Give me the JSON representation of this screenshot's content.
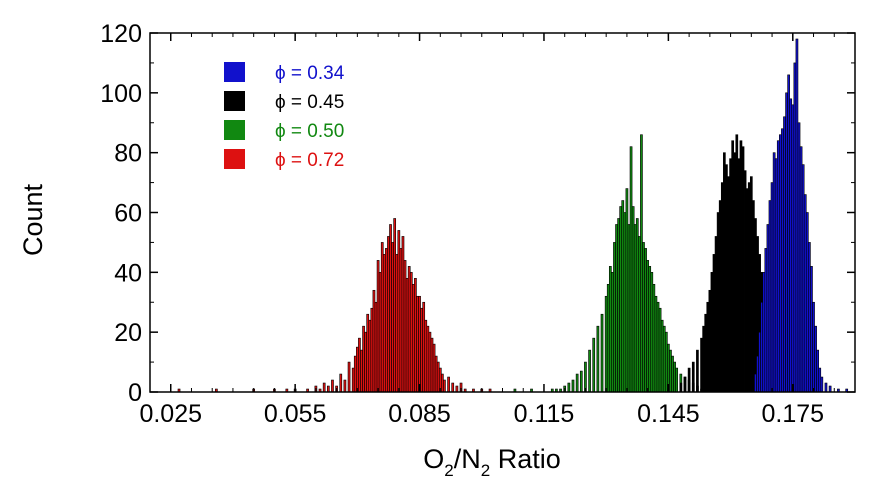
{
  "chart_data": {
    "type": "bar",
    "title": "",
    "xlabel": {
      "parts": [
        {
          "text": "O",
          "sub": false
        },
        {
          "text": "2",
          "sub": true
        },
        {
          "text": "/N",
          "sub": false
        },
        {
          "text": "2",
          "sub": true
        },
        {
          "text": " Ratio",
          "sub": false
        }
      ]
    },
    "ylabel": "Count",
    "xlim": [
      0.02,
      0.19
    ],
    "ylim": [
      0,
      120
    ],
    "x_ticks": [
      "0.025",
      "0.055",
      "0.085",
      "0.115",
      "0.145",
      "0.175"
    ],
    "y_ticks": [
      "0",
      "20",
      "40",
      "60",
      "80",
      "100",
      "120"
    ],
    "grid": false,
    "legend_position": "top-left",
    "series": [
      {
        "name": "ϕ = 0.72",
        "color": "#dd1111",
        "points": [
          [
            0.027,
            1
          ],
          [
            0.036,
            1
          ],
          [
            0.045,
            1
          ],
          [
            0.05,
            1
          ],
          [
            0.053,
            1
          ],
          [
            0.055,
            1
          ],
          [
            0.058,
            1
          ],
          [
            0.06,
            2
          ],
          [
            0.061,
            1
          ],
          [
            0.062,
            3
          ],
          [
            0.063,
            2
          ],
          [
            0.064,
            4
          ],
          [
            0.065,
            2
          ],
          [
            0.066,
            6
          ],
          [
            0.067,
            4
          ],
          [
            0.068,
            10
          ],
          [
            0.069,
            8
          ],
          [
            0.0695,
            12
          ],
          [
            0.07,
            15
          ],
          [
            0.0705,
            18
          ],
          [
            0.071,
            14
          ],
          [
            0.0715,
            22
          ],
          [
            0.072,
            20
          ],
          [
            0.0725,
            26
          ],
          [
            0.073,
            24
          ],
          [
            0.0735,
            28
          ],
          [
            0.074,
            34
          ],
          [
            0.0745,
            30
          ],
          [
            0.075,
            44
          ],
          [
            0.0755,
            40
          ],
          [
            0.076,
            50
          ],
          [
            0.0765,
            46
          ],
          [
            0.077,
            48
          ],
          [
            0.0775,
            52
          ],
          [
            0.078,
            56
          ],
          [
            0.0785,
            50
          ],
          [
            0.079,
            58
          ],
          [
            0.0795,
            46
          ],
          [
            0.08,
            54
          ],
          [
            0.0805,
            48
          ],
          [
            0.081,
            52
          ],
          [
            0.0815,
            44
          ],
          [
            0.082,
            38
          ],
          [
            0.0825,
            42
          ],
          [
            0.083,
            40
          ],
          [
            0.0835,
            36
          ],
          [
            0.084,
            38
          ],
          [
            0.0845,
            32
          ],
          [
            0.085,
            32
          ],
          [
            0.0855,
            28
          ],
          [
            0.086,
            30
          ],
          [
            0.0865,
            24
          ],
          [
            0.087,
            22
          ],
          [
            0.0875,
            20
          ],
          [
            0.088,
            18
          ],
          [
            0.0885,
            16
          ],
          [
            0.089,
            12
          ],
          [
            0.0895,
            10
          ],
          [
            0.09,
            8
          ],
          [
            0.0905,
            6
          ],
          [
            0.091,
            4
          ],
          [
            0.092,
            5
          ],
          [
            0.093,
            3
          ],
          [
            0.094,
            2
          ],
          [
            0.095,
            3
          ],
          [
            0.096,
            1
          ],
          [
            0.098,
            1
          ],
          [
            0.1,
            1
          ],
          [
            0.102,
            1
          ]
        ]
      },
      {
        "name": "ϕ = 0.50",
        "color": "#118811",
        "points": [
          [
            0.108,
            1
          ],
          [
            0.112,
            1
          ],
          [
            0.117,
            1
          ],
          [
            0.118,
            1
          ],
          [
            0.119,
            1
          ],
          [
            0.12,
            2
          ],
          [
            0.121,
            3
          ],
          [
            0.122,
            4
          ],
          [
            0.123,
            6
          ],
          [
            0.124,
            7
          ],
          [
            0.125,
            10
          ],
          [
            0.126,
            14
          ],
          [
            0.127,
            18
          ],
          [
            0.128,
            22
          ],
          [
            0.129,
            26
          ],
          [
            0.13,
            32
          ],
          [
            0.1305,
            36
          ],
          [
            0.131,
            42
          ],
          [
            0.1315,
            40
          ],
          [
            0.132,
            50
          ],
          [
            0.1325,
            56
          ],
          [
            0.133,
            58
          ],
          [
            0.1335,
            62
          ],
          [
            0.134,
            64
          ],
          [
            0.1345,
            60
          ],
          [
            0.135,
            68
          ],
          [
            0.1355,
            56
          ],
          [
            0.136,
            82
          ],
          [
            0.1365,
            62
          ],
          [
            0.137,
            56
          ],
          [
            0.1375,
            58
          ],
          [
            0.138,
            52
          ],
          [
            0.1385,
            86
          ],
          [
            0.139,
            50
          ],
          [
            0.1395,
            48
          ],
          [
            0.14,
            44
          ],
          [
            0.1405,
            42
          ],
          [
            0.141,
            40
          ],
          [
            0.1415,
            36
          ],
          [
            0.142,
            32
          ],
          [
            0.1425,
            30
          ],
          [
            0.143,
            28
          ],
          [
            0.1435,
            24
          ],
          [
            0.144,
            22
          ],
          [
            0.1445,
            20
          ],
          [
            0.145,
            16
          ],
          [
            0.1455,
            14
          ],
          [
            0.146,
            12
          ],
          [
            0.1465,
            10
          ],
          [
            0.147,
            8
          ],
          [
            0.148,
            6
          ],
          [
            0.149,
            5
          ],
          [
            0.15,
            4
          ],
          [
            0.151,
            3
          ],
          [
            0.152,
            2
          ],
          [
            0.153,
            1
          ]
        ]
      },
      {
        "name": "ϕ = 0.45",
        "color": "#000000",
        "points": [
          [
            0.148,
            3
          ],
          [
            0.149,
            5
          ],
          [
            0.15,
            8
          ],
          [
            0.151,
            10
          ],
          [
            0.152,
            14
          ],
          [
            0.153,
            18
          ],
          [
            0.1535,
            22
          ],
          [
            0.154,
            26
          ],
          [
            0.1545,
            30
          ],
          [
            0.155,
            34
          ],
          [
            0.1555,
            40
          ],
          [
            0.156,
            46
          ],
          [
            0.1565,
            52
          ],
          [
            0.157,
            60
          ],
          [
            0.1575,
            64
          ],
          [
            0.158,
            70
          ],
          [
            0.1585,
            80
          ],
          [
            0.159,
            76
          ],
          [
            0.1595,
            72
          ],
          [
            0.16,
            78
          ],
          [
            0.1605,
            84
          ],
          [
            0.161,
            80
          ],
          [
            0.1615,
            86
          ],
          [
            0.162,
            78
          ],
          [
            0.1625,
            84
          ],
          [
            0.163,
            82
          ],
          [
            0.1635,
            74
          ],
          [
            0.164,
            68
          ],
          [
            0.1645,
            70
          ],
          [
            0.165,
            72
          ],
          [
            0.1655,
            64
          ],
          [
            0.166,
            58
          ],
          [
            0.1665,
            52
          ],
          [
            0.167,
            46
          ],
          [
            0.1675,
            40
          ],
          [
            0.168,
            32
          ],
          [
            0.1685,
            24
          ],
          [
            0.169,
            18
          ],
          [
            0.1695,
            12
          ],
          [
            0.17,
            8
          ],
          [
            0.1705,
            5
          ],
          [
            0.171,
            3
          ]
        ]
      },
      {
        "name": "ϕ = 0.34",
        "color": "#1111cc",
        "points": [
          [
            0.166,
            6
          ],
          [
            0.1665,
            12
          ],
          [
            0.167,
            20
          ],
          [
            0.1675,
            30
          ],
          [
            0.168,
            40
          ],
          [
            0.1685,
            48
          ],
          [
            0.169,
            56
          ],
          [
            0.1695,
            64
          ],
          [
            0.17,
            70
          ],
          [
            0.1705,
            80
          ],
          [
            0.171,
            78
          ],
          [
            0.1715,
            84
          ],
          [
            0.172,
            86
          ],
          [
            0.1725,
            88
          ],
          [
            0.173,
            92
          ],
          [
            0.1735,
            100
          ],
          [
            0.174,
            106
          ],
          [
            0.1745,
            98
          ],
          [
            0.175,
            96
          ],
          [
            0.1755,
            110
          ],
          [
            0.176,
            118
          ],
          [
            0.1765,
            90
          ],
          [
            0.177,
            82
          ],
          [
            0.1775,
            76
          ],
          [
            0.178,
            66
          ],
          [
            0.1785,
            60
          ],
          [
            0.179,
            50
          ],
          [
            0.1795,
            42
          ],
          [
            0.18,
            30
          ],
          [
            0.1805,
            22
          ],
          [
            0.181,
            14
          ],
          [
            0.1815,
            8
          ],
          [
            0.182,
            5
          ],
          [
            0.183,
            3
          ],
          [
            0.184,
            2
          ],
          [
            0.186,
            1
          ],
          [
            0.188,
            1
          ]
        ]
      }
    ],
    "legend_order": [
      3,
      2,
      1,
      0
    ]
  }
}
